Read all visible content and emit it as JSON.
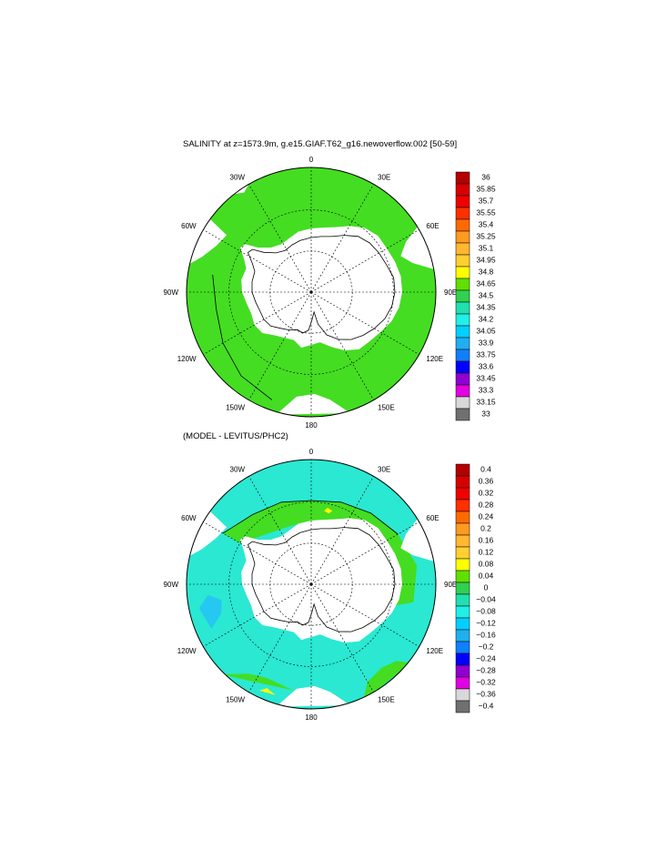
{
  "panels": [
    {
      "title": "SALINITY at z=1573.9m, g.e15.GIAF.T62_g16.newoverflow.002 [50-59]",
      "colorbar": {
        "labels": [
          "36",
          "35.85",
          "35.7",
          "35.55",
          "35.4",
          "35.25",
          "35.1",
          "34.95",
          "34.8",
          "34.65",
          "34.5",
          "34.35",
          "34.2",
          "34.05",
          "33.9",
          "33.75",
          "33.6",
          "33.45",
          "33.3",
          "33.15",
          "33"
        ],
        "colors": [
          "#b40000",
          "#d80000",
          "#f00000",
          "#ff3000",
          "#ff6a00",
          "#ff9a20",
          "#ffb830",
          "#ffd030",
          "#ffff00",
          "#60e000",
          "#30d050",
          "#20e0b0",
          "#20f0e8",
          "#00d0ff",
          "#20b0f0",
          "#1080ff",
          "#0000ff",
          "#9000d0",
          "#e000e0",
          "#d8d8d8",
          "#707070"
        ]
      }
    },
    {
      "title": "(MODEL - LEVITUS/PHC2)",
      "colorbar": {
        "labels": [
          "0.4",
          "0.36",
          "0.32",
          "0.28",
          "0.24",
          "0.2",
          "0.16",
          "0.12",
          "0.08",
          "0.04",
          "0",
          "−0.04",
          "−0.08",
          "−0.12",
          "−0.16",
          "−0.2",
          "−0.24",
          "−0.28",
          "−0.32",
          "−0.36",
          "−0.4"
        ],
        "colors": [
          "#b40000",
          "#d80000",
          "#f00000",
          "#ff3000",
          "#ff6a00",
          "#ff9a20",
          "#ffb830",
          "#ffd030",
          "#ffff00",
          "#60e000",
          "#30d050",
          "#20e0b0",
          "#20f0e8",
          "#00d0ff",
          "#20b0f0",
          "#1080ff",
          "#0000ff",
          "#9000d0",
          "#e000e0",
          "#d8d8d8",
          "#707070"
        ]
      }
    }
  ],
  "longitude_labels": [
    "0",
    "30E",
    "60E",
    "90E",
    "120E",
    "150E",
    "180",
    "150W",
    "120W",
    "90W",
    "60W",
    "30W"
  ],
  "colors": {
    "salinity_fill": "#44dd22",
    "anomaly_fill": "#2ae8d2",
    "anomaly_green": "#44dd22",
    "anomaly_blue": "#24c8f0",
    "anomaly_yellow": "#ffff00",
    "land": "#ffffff"
  }
}
